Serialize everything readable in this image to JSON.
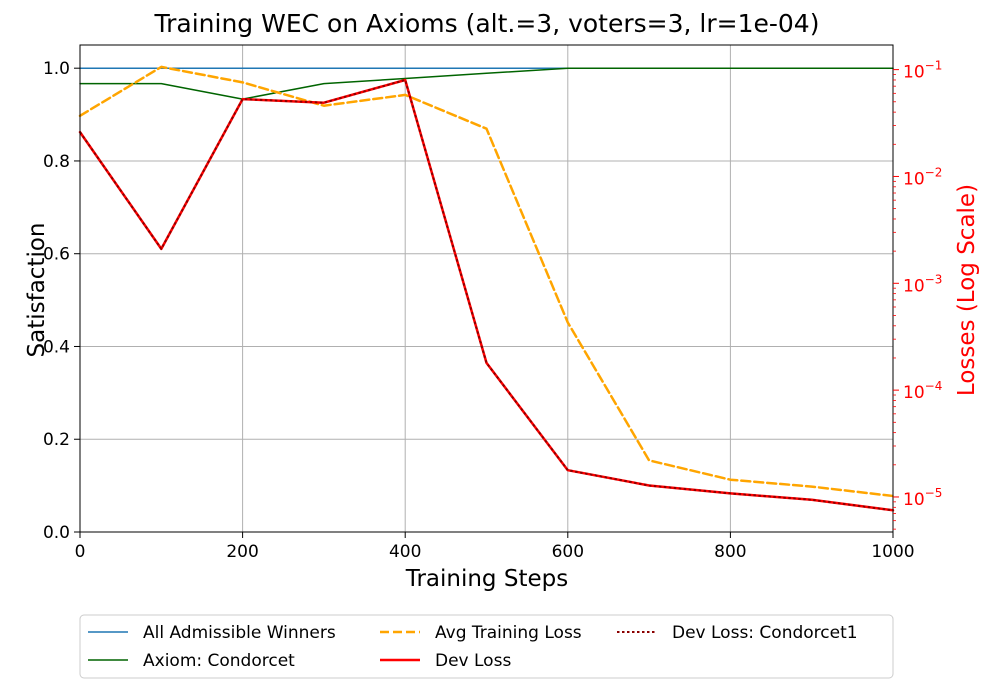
{
  "chart_data": {
    "type": "line",
    "title": "Training WEC on Axioms (alt.=3, voters=3, lr=1e-04)",
    "xlabel": "Training Steps",
    "ylabel_left": "Satisfaction",
    "ylabel_right": "Losses (Log Scale)",
    "xlim": [
      0,
      1000
    ],
    "ylim_left": [
      0,
      1.05
    ],
    "ylim_right": [
      4.7e-06,
      0.17
    ],
    "right_scale": "log",
    "x_ticks": [
      "0",
      "200",
      "400",
      "600",
      "800",
      "1000"
    ],
    "y_ticks_left": [
      "0.0",
      "0.2",
      "0.4",
      "0.6",
      "0.8",
      "1.0"
    ],
    "y_ticks_right_exponents": [
      "−1",
      "−2",
      "−3",
      "−4",
      "−5"
    ],
    "y_ticks_right_base": "10",
    "grid": true,
    "legend_position": "bottom-outside",
    "x": [
      0,
      100,
      200,
      300,
      400,
      500,
      600,
      700,
      800,
      900,
      1000
    ],
    "series": [
      {
        "name": "All Admissible Winners",
        "axis": "left",
        "color": "#1f77b4",
        "style": "solid",
        "width": 1.5,
        "values": [
          1.0,
          1.0,
          1.0,
          1.0,
          1.0,
          1.0,
          1.0,
          1.0,
          1.0,
          1.0,
          1.0
        ]
      },
      {
        "name": "Axiom: Condorcet",
        "axis": "left",
        "color": "#006400",
        "style": "solid",
        "width": 1.5,
        "values": [
          0.9667,
          0.9667,
          0.9333,
          0.9667,
          0.9778,
          0.9889,
          1.0,
          1.0,
          1.0,
          1.0,
          1.0
        ]
      },
      {
        "name": "Avg Training Loss",
        "axis": "right",
        "color": "#ffa500",
        "style": "dashed",
        "width": 2.5,
        "values": [
          0.037,
          0.106,
          0.076,
          0.046,
          0.058,
          0.028,
          0.00043,
          2.2e-05,
          1.45e-05,
          1.25e-05,
          1.02e-05
        ]
      },
      {
        "name": "Dev Loss",
        "axis": "right",
        "color": "#ff0000",
        "style": "solid",
        "width": 2.5,
        "values": [
          0.026,
          0.0021,
          0.053,
          0.049,
          0.08,
          0.00018,
          1.78e-05,
          1.28e-05,
          1.08e-05,
          9.4e-06,
          7.5e-06
        ]
      },
      {
        "name": "Dev Loss: Condorcet1",
        "axis": "right",
        "color": "#8b0000",
        "style": "dotted",
        "width": 2,
        "values": [
          0.026,
          0.0021,
          0.053,
          0.049,
          0.08,
          0.00018,
          1.78e-05,
          1.28e-05,
          1.08e-05,
          9.4e-06,
          7.5e-06
        ]
      }
    ]
  }
}
